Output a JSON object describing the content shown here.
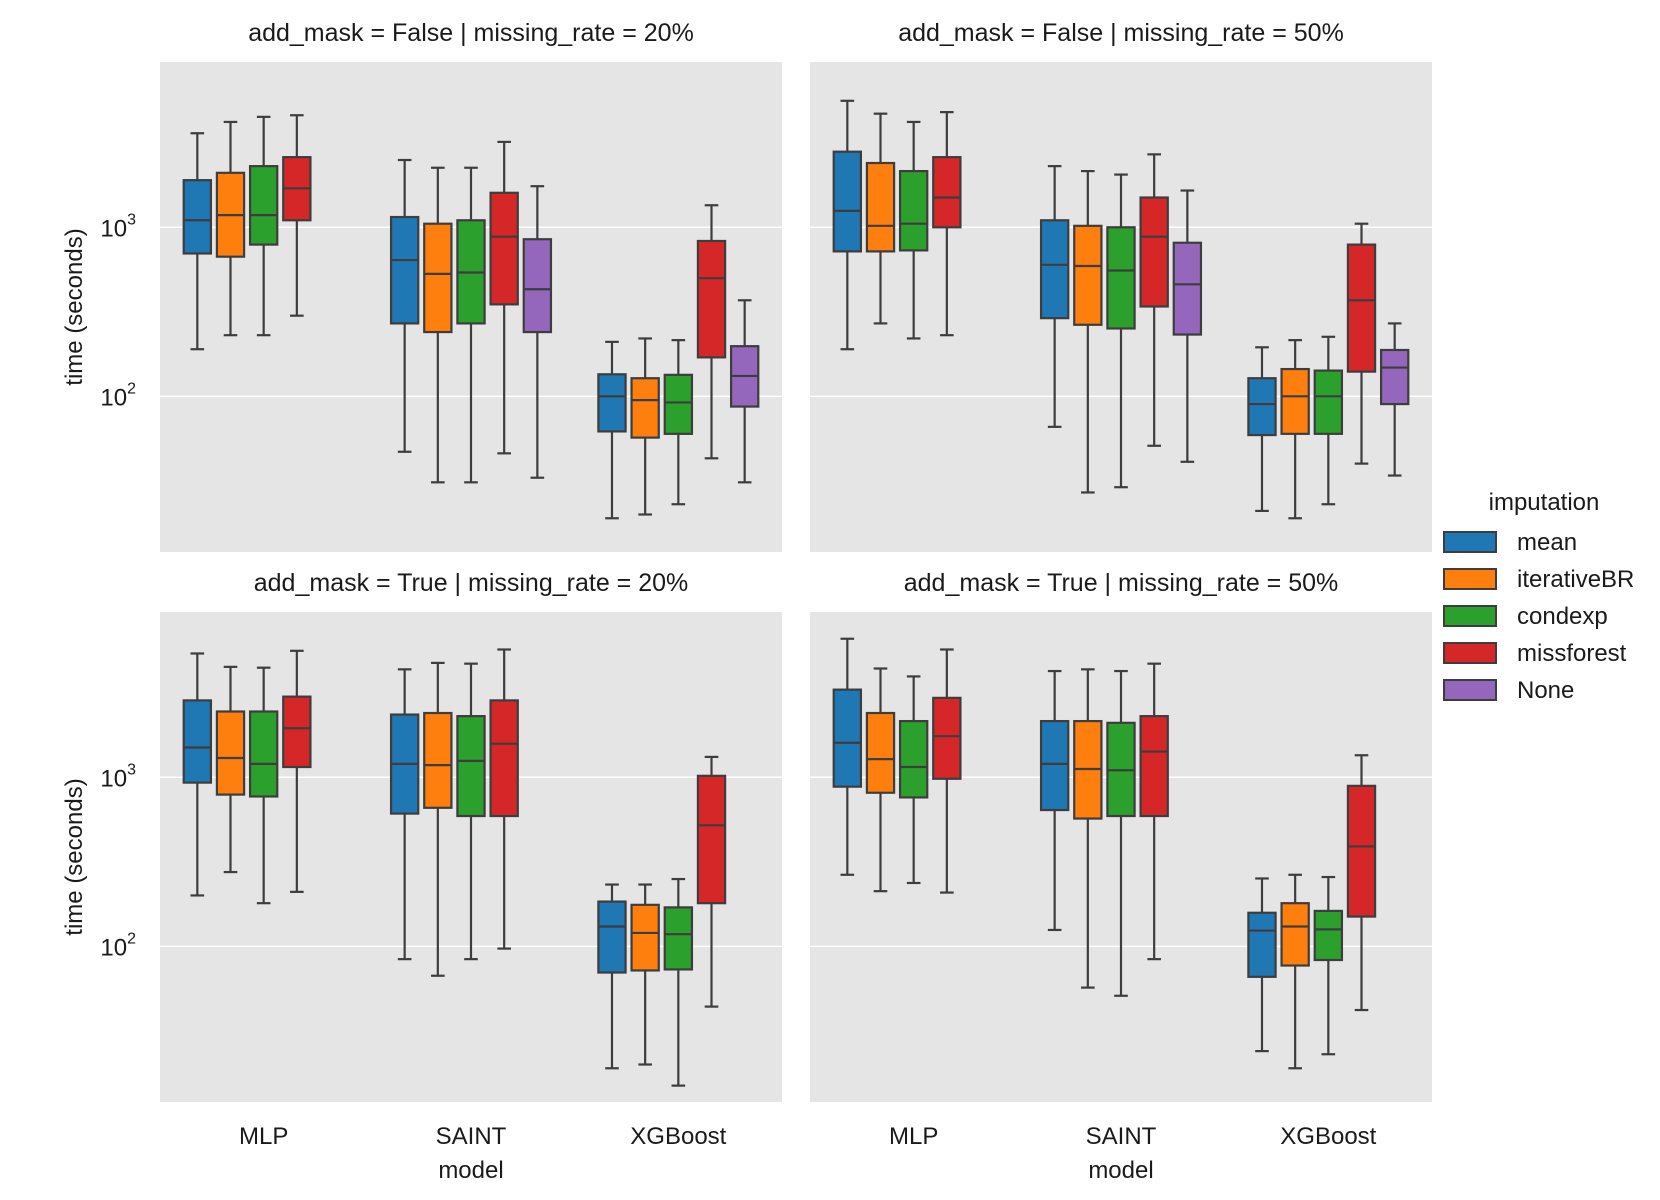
{
  "chart_data": {
    "type": "boxplot",
    "yscale": "log",
    "ylim": [
      12,
      9500
    ],
    "ylabel": "time (seconds)",
    "xlabel": "model",
    "yticks": [
      {
        "value": 100,
        "label": "10",
        "exp": "2"
      },
      {
        "value": 1000,
        "label": "10",
        "exp": "3"
      }
    ],
    "categories": [
      "MLP",
      "SAINT",
      "XGBoost"
    ],
    "legend": {
      "title": "imputation",
      "placement": "right-center",
      "entries": [
        {
          "name": "mean",
          "color": "#1f77b4"
        },
        {
          "name": "iterativeBR",
          "color": "#ff7f0e"
        },
        {
          "name": "condexp",
          "color": "#2ca02c"
        },
        {
          "name": "missforest",
          "color": "#d62728"
        },
        {
          "name": "None",
          "color": "#9467bd"
        }
      ]
    },
    "panels": [
      {
        "title": "add_mask = False | missing_rate = 20%",
        "groups": [
          {
            "model": "MLP",
            "boxes": [
              {
                "imputation": "mean",
                "whislo": 190,
                "q1": 700,
                "med": 1100,
                "q3": 1900,
                "whishi": 3600
              },
              {
                "imputation": "iterativeBR",
                "whislo": 230,
                "q1": 670,
                "med": 1180,
                "q3": 2100,
                "whishi": 4200
              },
              {
                "imputation": "condexp",
                "whislo": 230,
                "q1": 790,
                "med": 1180,
                "q3": 2300,
                "whishi": 4500
              },
              {
                "imputation": "missforest",
                "whislo": 300,
                "q1": 1100,
                "med": 1700,
                "q3": 2600,
                "whishi": 4600
              }
            ]
          },
          {
            "model": "SAINT",
            "boxes": [
              {
                "imputation": "mean",
                "whislo": 47,
                "q1": 270,
                "med": 640,
                "q3": 1150,
                "whishi": 2500
              },
              {
                "imputation": "iterativeBR",
                "whislo": 31,
                "q1": 240,
                "med": 530,
                "q3": 1050,
                "whishi": 2250
              },
              {
                "imputation": "condexp",
                "whislo": 31,
                "q1": 270,
                "med": 540,
                "q3": 1100,
                "whishi": 2250
              },
              {
                "imputation": "missforest",
                "whislo": 46,
                "q1": 350,
                "med": 880,
                "q3": 1600,
                "whishi": 3200
              },
              {
                "imputation": "None",
                "whislo": 33,
                "q1": 240,
                "med": 430,
                "q3": 850,
                "whishi": 1750
              }
            ]
          },
          {
            "model": "XGBoost",
            "boxes": [
              {
                "imputation": "mean",
                "whislo": 19,
                "q1": 62,
                "med": 100,
                "q3": 135,
                "whishi": 210
              },
              {
                "imputation": "iterativeBR",
                "whislo": 20,
                "q1": 57,
                "med": 95,
                "q3": 128,
                "whishi": 220
              },
              {
                "imputation": "condexp",
                "whislo": 23,
                "q1": 60,
                "med": 92,
                "q3": 134,
                "whishi": 215
              },
              {
                "imputation": "missforest",
                "whislo": 43,
                "q1": 170,
                "med": 500,
                "q3": 830,
                "whishi": 1350
              },
              {
                "imputation": "None",
                "whislo": 31,
                "q1": 87,
                "med": 132,
                "q3": 198,
                "whishi": 370
              }
            ]
          }
        ]
      },
      {
        "title": "add_mask = False | missing_rate = 50%",
        "groups": [
          {
            "model": "MLP",
            "boxes": [
              {
                "imputation": "mean",
                "whislo": 190,
                "q1": 720,
                "med": 1250,
                "q3": 2800,
                "whishi": 5600
              },
              {
                "imputation": "iterativeBR",
                "whislo": 270,
                "q1": 720,
                "med": 1020,
                "q3": 2400,
                "whishi": 4700
              },
              {
                "imputation": "condexp",
                "whislo": 220,
                "q1": 730,
                "med": 1050,
                "q3": 2150,
                "whishi": 4200
              },
              {
                "imputation": "missforest",
                "whislo": 230,
                "q1": 1000,
                "med": 1500,
                "q3": 2600,
                "whishi": 4800
              }
            ]
          },
          {
            "model": "SAINT",
            "boxes": [
              {
                "imputation": "mean",
                "whislo": 66,
                "q1": 290,
                "med": 600,
                "q3": 1100,
                "whishi": 2300
              },
              {
                "imputation": "iterativeBR",
                "whislo": 27,
                "q1": 265,
                "med": 590,
                "q3": 1020,
                "whishi": 2150
              },
              {
                "imputation": "condexp",
                "whislo": 29,
                "q1": 252,
                "med": 555,
                "q3": 1000,
                "whishi": 2050
              },
              {
                "imputation": "missforest",
                "whislo": 51,
                "q1": 340,
                "med": 880,
                "q3": 1500,
                "whishi": 2700
              },
              {
                "imputation": "None",
                "whislo": 41,
                "q1": 232,
                "med": 460,
                "q3": 810,
                "whishi": 1650
              }
            ]
          },
          {
            "model": "XGBoost",
            "boxes": [
              {
                "imputation": "mean",
                "whislo": 21,
                "q1": 59,
                "med": 90,
                "q3": 128,
                "whishi": 195
              },
              {
                "imputation": "iterativeBR",
                "whislo": 19,
                "q1": 60,
                "med": 100,
                "q3": 145,
                "whishi": 215
              },
              {
                "imputation": "condexp",
                "whislo": 23,
                "q1": 60,
                "med": 100,
                "q3": 142,
                "whishi": 225
              },
              {
                "imputation": "missforest",
                "whislo": 40,
                "q1": 140,
                "med": 370,
                "q3": 790,
                "whishi": 1050
              },
              {
                "imputation": "None",
                "whislo": 34,
                "q1": 90,
                "med": 148,
                "q3": 188,
                "whishi": 270
              }
            ]
          }
        ]
      },
      {
        "title": "add_mask = True | missing_rate = 20%",
        "groups": [
          {
            "model": "MLP",
            "boxes": [
              {
                "imputation": "mean",
                "whislo": 200,
                "q1": 930,
                "med": 1500,
                "q3": 2850,
                "whishi": 5400
              },
              {
                "imputation": "iterativeBR",
                "whislo": 275,
                "q1": 790,
                "med": 1300,
                "q3": 2450,
                "whishi": 4500
              },
              {
                "imputation": "condexp",
                "whislo": 180,
                "q1": 770,
                "med": 1200,
                "q3": 2450,
                "whishi": 4450
              },
              {
                "imputation": "missforest",
                "whislo": 210,
                "q1": 1150,
                "med": 1950,
                "q3": 3000,
                "whishi": 5600
              }
            ]
          },
          {
            "model": "SAINT",
            "boxes": [
              {
                "imputation": "mean",
                "whislo": 84,
                "q1": 610,
                "med": 1200,
                "q3": 2350,
                "whishi": 4350
              },
              {
                "imputation": "iterativeBR",
                "whislo": 67,
                "q1": 660,
                "med": 1180,
                "q3": 2400,
                "whishi": 4750
              },
              {
                "imputation": "condexp",
                "whislo": 84,
                "q1": 590,
                "med": 1250,
                "q3": 2300,
                "whishi": 4700
              },
              {
                "imputation": "missforest",
                "whislo": 97,
                "q1": 590,
                "med": 1580,
                "q3": 2850,
                "whishi": 5700
              }
            ]
          },
          {
            "model": "XGBoost",
            "boxes": [
              {
                "imputation": "mean",
                "whislo": 19,
                "q1": 70,
                "med": 131,
                "q3": 184,
                "whishi": 232
              },
              {
                "imputation": "iterativeBR",
                "whislo": 20,
                "q1": 72,
                "med": 120,
                "q3": 176,
                "whishi": 232
              },
              {
                "imputation": "condexp",
                "whislo": 15,
                "q1": 73,
                "med": 118,
                "q3": 170,
                "whishi": 250
              },
              {
                "imputation": "missforest",
                "whislo": 44,
                "q1": 180,
                "med": 520,
                "q3": 1020,
                "whishi": 1320
              }
            ]
          }
        ]
      },
      {
        "title": "add_mask = True | missing_rate = 50%",
        "groups": [
          {
            "model": "MLP",
            "boxes": [
              {
                "imputation": "mean",
                "whislo": 265,
                "q1": 880,
                "med": 1600,
                "q3": 3300,
                "whishi": 6600
              },
              {
                "imputation": "iterativeBR",
                "whislo": 212,
                "q1": 810,
                "med": 1280,
                "q3": 2400,
                "whishi": 4400
              },
              {
                "imputation": "condexp",
                "whislo": 237,
                "q1": 760,
                "med": 1150,
                "q3": 2150,
                "whishi": 3950
              },
              {
                "imputation": "missforest",
                "whislo": 208,
                "q1": 980,
                "med": 1750,
                "q3": 2950,
                "whishi": 5700
              }
            ]
          },
          {
            "model": "SAINT",
            "boxes": [
              {
                "imputation": "mean",
                "whislo": 125,
                "q1": 640,
                "med": 1200,
                "q3": 2150,
                "whishi": 4250
              },
              {
                "imputation": "iterativeBR",
                "whislo": 57,
                "q1": 570,
                "med": 1120,
                "q3": 2150,
                "whishi": 4350
              },
              {
                "imputation": "condexp",
                "whislo": 51,
                "q1": 590,
                "med": 1100,
                "q3": 2100,
                "whishi": 4250
              },
              {
                "imputation": "missforest",
                "whislo": 84,
                "q1": 590,
                "med": 1420,
                "q3": 2300,
                "whishi": 4700
              }
            ]
          },
          {
            "model": "XGBoost",
            "boxes": [
              {
                "imputation": "mean",
                "whislo": 24,
                "q1": 66,
                "med": 124,
                "q3": 158,
                "whishi": 252
              },
              {
                "imputation": "iterativeBR",
                "whislo": 19,
                "q1": 77,
                "med": 131,
                "q3": 180,
                "whishi": 265
              },
              {
                "imputation": "condexp",
                "whislo": 23,
                "q1": 83,
                "med": 126,
                "q3": 162,
                "whishi": 257
              },
              {
                "imputation": "missforest",
                "whislo": 42,
                "q1": 150,
                "med": 390,
                "q3": 890,
                "whishi": 1350
              }
            ]
          }
        ]
      }
    ]
  }
}
